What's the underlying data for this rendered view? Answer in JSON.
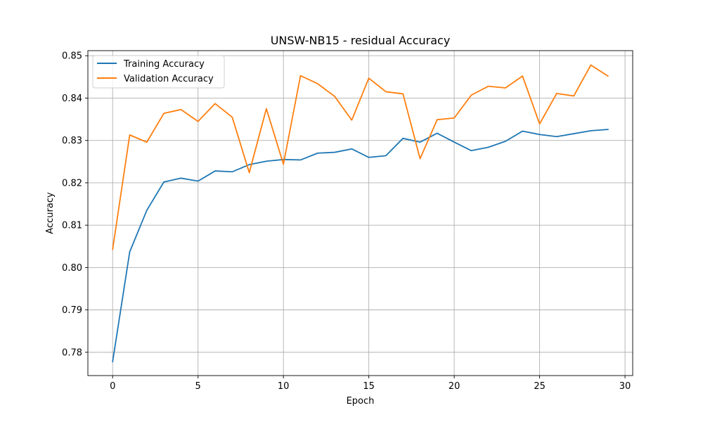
{
  "chart_data": {
    "type": "line",
    "title": "UNSW-NB15 - residual Accuracy",
    "xlabel": "Epoch",
    "ylabel": "Accuracy",
    "xlim": [
      -1.45,
      30.45
    ],
    "ylim": [
      0.7745,
      0.8512
    ],
    "xticks": [
      0,
      5,
      10,
      15,
      20,
      25,
      30
    ],
    "yticks": [
      0.78,
      0.79,
      0.8,
      0.81,
      0.82,
      0.83,
      0.84,
      0.85
    ],
    "xtick_labels": [
      "0",
      "5",
      "10",
      "15",
      "20",
      "25",
      "30"
    ],
    "ytick_labels": [
      "0.78",
      "0.79",
      "0.80",
      "0.81",
      "0.82",
      "0.83",
      "0.84",
      "0.85"
    ],
    "grid": true,
    "legend_position": "top-left",
    "x": [
      0,
      1,
      2,
      3,
      4,
      5,
      6,
      7,
      8,
      9,
      10,
      11,
      12,
      13,
      14,
      15,
      16,
      17,
      18,
      19,
      20,
      21,
      22,
      23,
      24,
      25,
      26,
      27,
      28,
      29
    ],
    "series": [
      {
        "name": "Training Accuracy",
        "color": "#1f77b4",
        "values": [
          0.7778,
          0.8037,
          0.8135,
          0.8202,
          0.8211,
          0.8204,
          0.8228,
          0.8226,
          0.8243,
          0.8251,
          0.8255,
          0.8254,
          0.827,
          0.8272,
          0.828,
          0.826,
          0.8264,
          0.8305,
          0.8296,
          0.8317,
          0.8296,
          0.8276,
          0.8284,
          0.8298,
          0.8322,
          0.8314,
          0.8309,
          0.8316,
          0.8323,
          0.8326
        ]
      },
      {
        "name": "Validation Accuracy",
        "color": "#ff7f0e",
        "values": [
          0.8043,
          0.8313,
          0.8296,
          0.8364,
          0.8373,
          0.8345,
          0.8387,
          0.8355,
          0.8224,
          0.8375,
          0.8244,
          0.8453,
          0.8434,
          0.8404,
          0.8348,
          0.8447,
          0.8415,
          0.841,
          0.8257,
          0.8349,
          0.8353,
          0.8407,
          0.8428,
          0.8424,
          0.8452,
          0.8339,
          0.8411,
          0.8405,
          0.8478,
          0.8452
        ]
      }
    ]
  }
}
